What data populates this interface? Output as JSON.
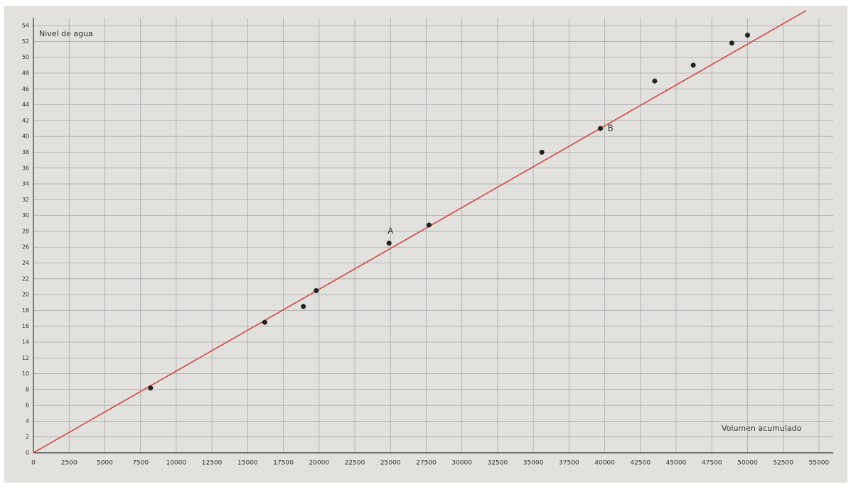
{
  "chart_data": {
    "type": "scatter",
    "x_label": "Volumen acumulado",
    "y_label": "Nivel de agua",
    "x": [
      8200,
      16200,
      18900,
      19800,
      24900,
      27700,
      35600,
      39700,
      43500,
      46200,
      48900,
      50000
    ],
    "values": [
      8.2,
      16.5,
      18.5,
      20.5,
      26.5,
      28.8,
      38,
      41,
      47,
      49,
      51.8,
      52.8
    ],
    "color": "#222222",
    "fit_line": {
      "x": [
        0,
        54100
      ],
      "values": [
        0,
        55.9
      ],
      "color": "#d0403a"
    },
    "annotations": [
      {
        "text": "A",
        "x": 25000,
        "y": 28
      },
      {
        "text": "B",
        "x": 40400,
        "y": 41
      }
    ],
    "xlim": [
      0,
      56000
    ],
    "ylim": [
      0,
      55
    ],
    "xticks": [
      0,
      2500,
      5000,
      7500,
      10000,
      12500,
      15000,
      17500,
      20000,
      22500,
      25000,
      27500,
      30000,
      32500,
      35000,
      37500,
      40000,
      42500,
      45000,
      47500,
      50000,
      52500,
      55000
    ],
    "yticks": [
      0,
      2,
      4,
      6,
      8,
      10,
      12,
      14,
      16,
      18,
      20,
      22,
      24,
      26,
      28,
      30,
      32,
      34,
      36,
      38,
      40,
      42,
      44,
      46,
      48,
      50,
      52,
      54
    ],
    "grid": true
  }
}
